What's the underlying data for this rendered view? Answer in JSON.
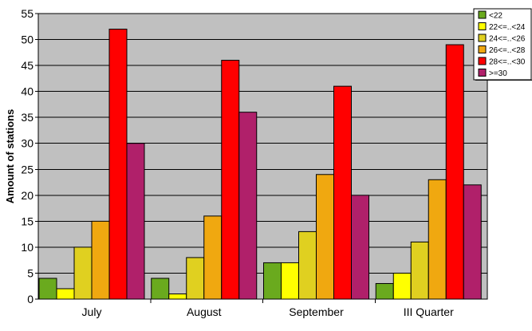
{
  "chart_data": {
    "type": "bar",
    "ylabel": "Amount of stations",
    "ylim": [
      0,
      55
    ],
    "yticks": [
      0,
      5,
      10,
      15,
      20,
      25,
      30,
      35,
      40,
      45,
      50,
      55
    ],
    "grid": true,
    "legend_position": "top-right",
    "plot_background": "#C0C0C0",
    "categories": [
      "July",
      "August",
      "September",
      "III Quarter"
    ],
    "series": [
      {
        "name": "<22",
        "color": "#6AAA1E",
        "values": [
          4,
          4,
          7,
          3
        ]
      },
      {
        "name": "22<=..<24",
        "color": "#FFFF00",
        "values": [
          2,
          1,
          7,
          5
        ]
      },
      {
        "name": "24<=..<26",
        "color": "#E0D020",
        "values": [
          10,
          8,
          13,
          11
        ]
      },
      {
        "name": "26<=..<28",
        "color": "#F0A810",
        "values": [
          15,
          16,
          24,
          23
        ]
      },
      {
        "name": "28<=..<30",
        "color": "#FF0000",
        "values": [
          52,
          46,
          41,
          49
        ]
      },
      {
        "name": ">=30",
        "color": "#B0206A",
        "values": [
          30,
          36,
          20,
          22
        ]
      }
    ]
  }
}
